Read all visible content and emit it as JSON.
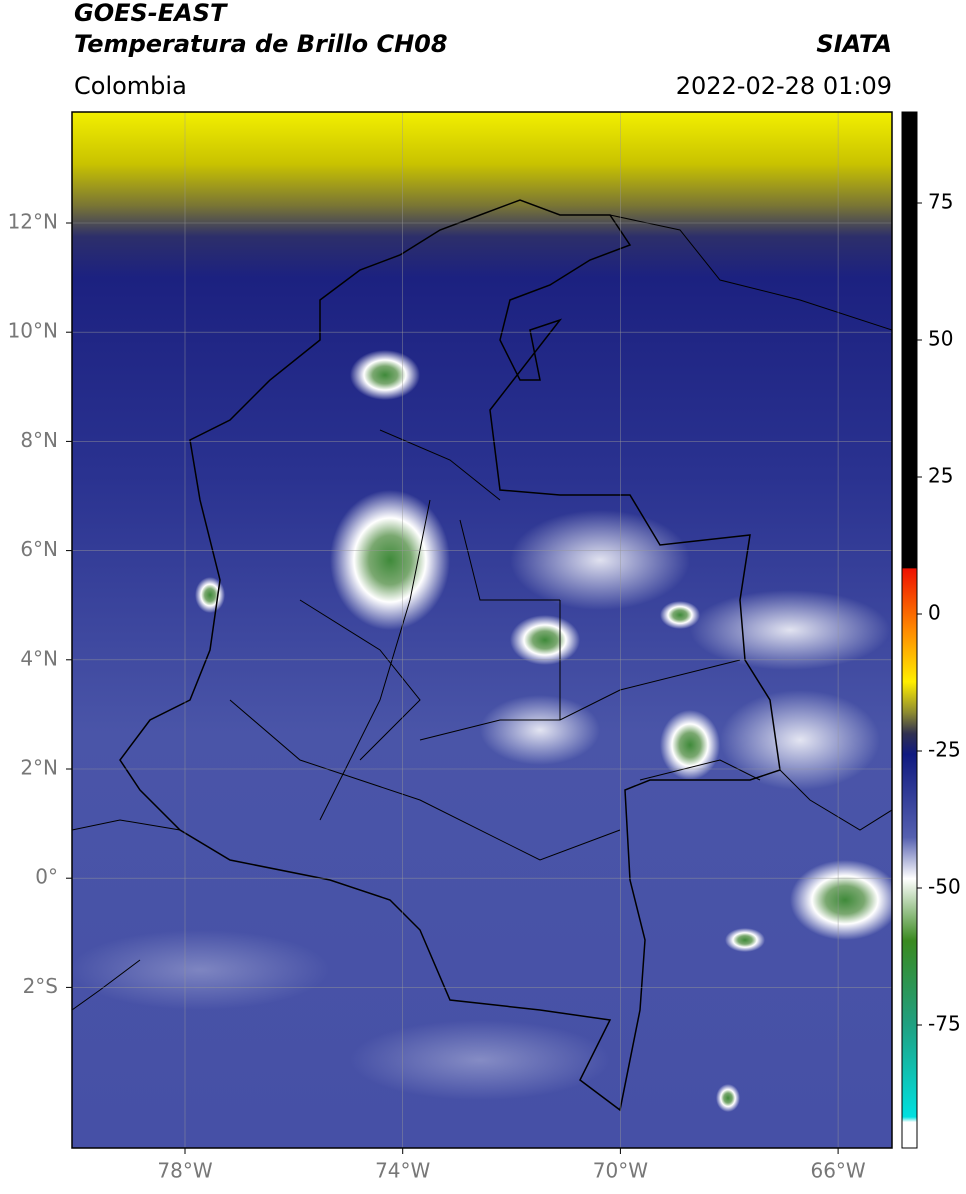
{
  "header": {
    "satellite": "GOES-EAST",
    "product": "Temperatura de Brillo CH08",
    "region": "Colombia",
    "agency": "SIATA",
    "datetime": "2022-02-28 01:09"
  },
  "map": {
    "lat_labels": [
      "12°N",
      "10°N",
      "8°N",
      "6°N",
      "4°N",
      "2°N",
      "0°",
      "2°S"
    ],
    "lon_labels": [
      "78°W",
      "74°W",
      "70°W",
      "66°W"
    ]
  },
  "colorbar": {
    "ticks": [
      75,
      50,
      25,
      0,
      -25,
      -50,
      -75
    ]
  }
}
